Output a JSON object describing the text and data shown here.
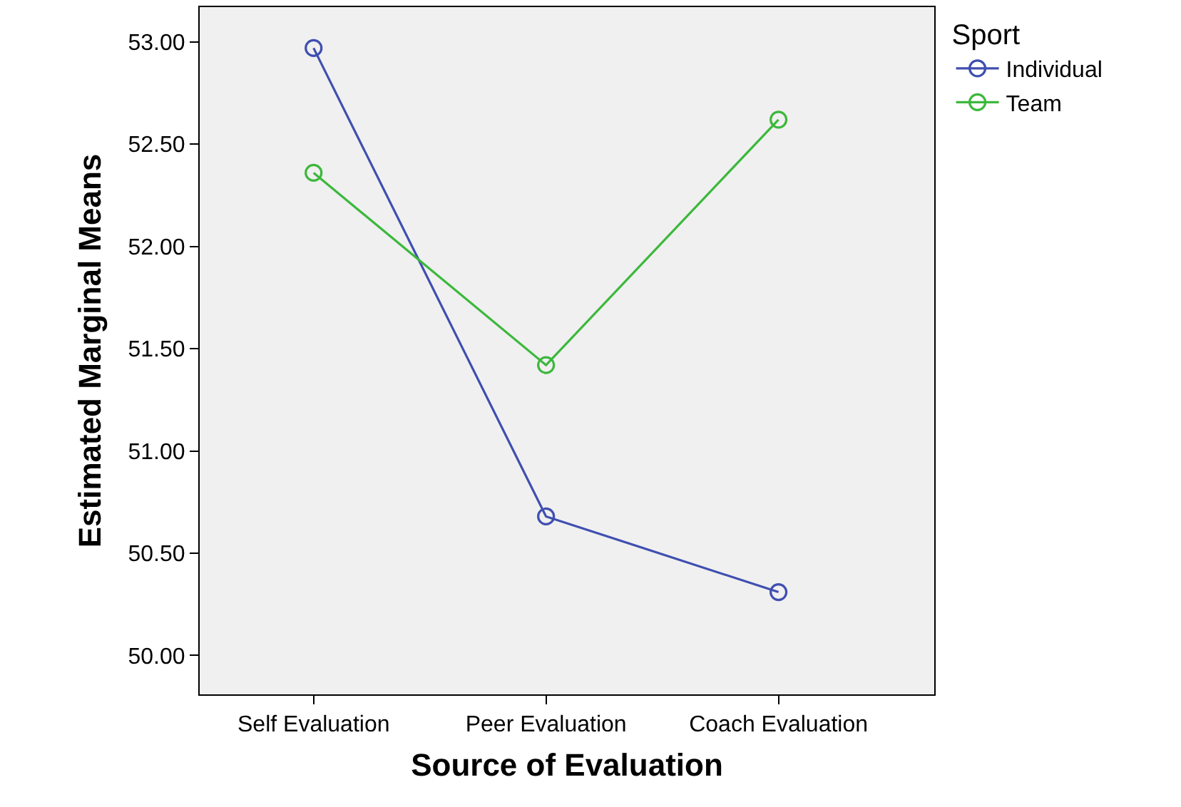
{
  "chart_data": {
    "type": "line",
    "xlabel": "Source of Evaluation",
    "ylabel": "Estimated Marginal Means",
    "legend_title": "Sport",
    "categories": [
      "Self Evaluation",
      "Peer Evaluation",
      "Coach Evaluation"
    ],
    "series": [
      {
        "name": "Individual",
        "color": "#3f4fb0",
        "values": [
          52.97,
          50.68,
          50.31
        ]
      },
      {
        "name": "Team",
        "color": "#3cb83c",
        "values": [
          52.36,
          51.42,
          52.62
        ]
      }
    ],
    "ylim": [
      49.81,
      53.17
    ],
    "yticks": [
      {
        "value": 50,
        "label": "50.00"
      },
      {
        "value": 50.5,
        "label": "50.50"
      },
      {
        "value": 51,
        "label": "51.00"
      },
      {
        "value": 51.5,
        "label": "51.50"
      },
      {
        "value": 52,
        "label": "52.00"
      },
      {
        "value": 52.5,
        "label": "52.50"
      },
      {
        "value": 53,
        "label": "53.00"
      }
    ],
    "grid": false,
    "legend": "top right",
    "marker": "circle",
    "line_style": "solid"
  }
}
